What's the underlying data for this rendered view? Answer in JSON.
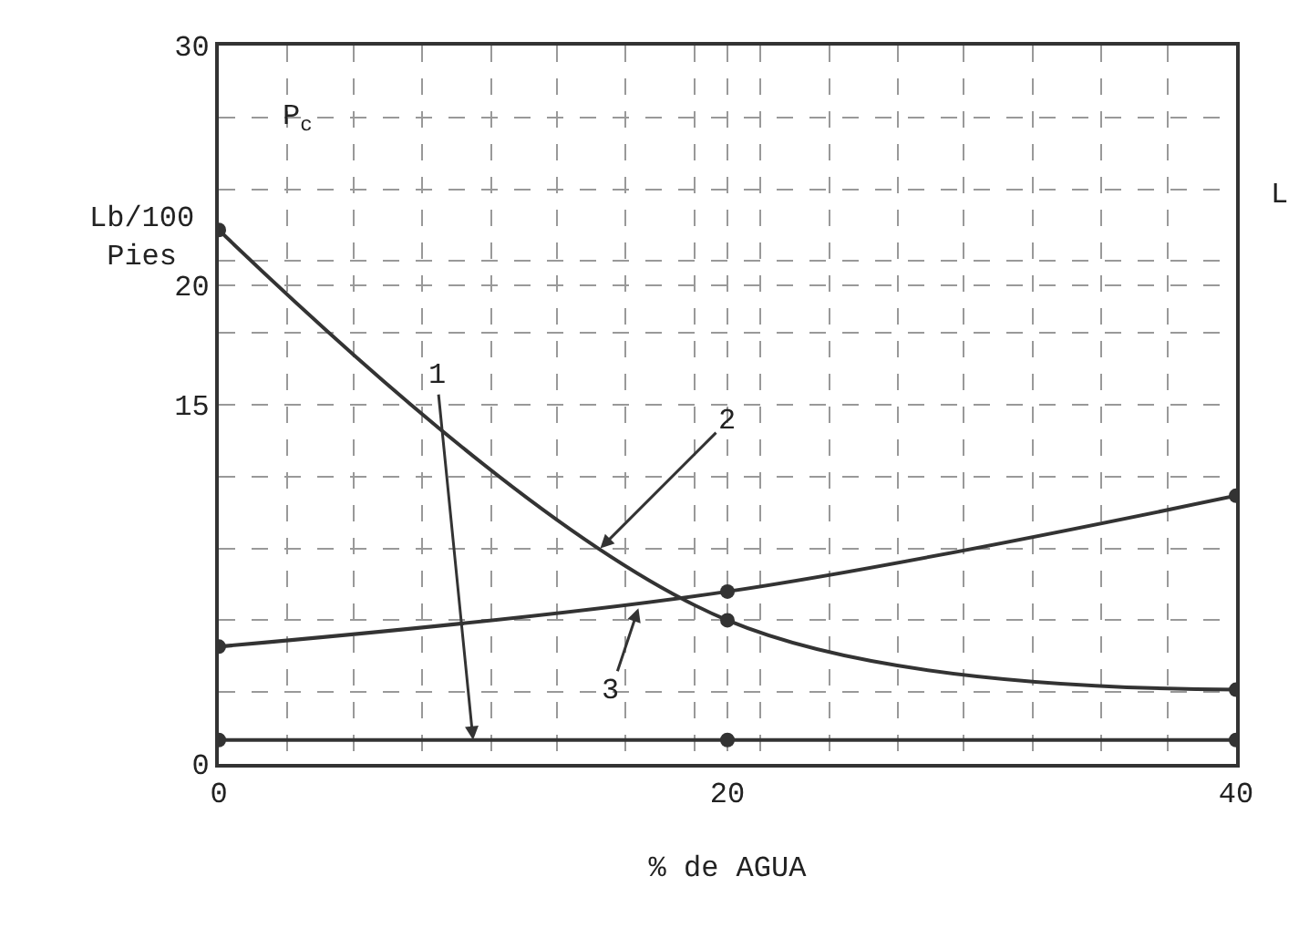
{
  "chart_data": {
    "type": "line",
    "xlabel": "% de AGUA",
    "ylabel": "Lb/100 Pies",
    "x": [
      0,
      20,
      40
    ],
    "series": [
      {
        "color": "#333333",
        "values": [
          1,
          1,
          1
        ]
      },
      {
        "color": "#333333",
        "values": [
          22.3,
          6,
          3.1
        ]
      },
      {
        "color": "#333333",
        "values": [
          4.9,
          7.2,
          11.2
        ]
      }
    ],
    "xlim": [
      0,
      40
    ],
    "ylim": [
      0,
      30
    ],
    "xticks": [
      0,
      {
        "value": 2.7,
        "label": null
      },
      {
        "value": 5.3,
        "label": null
      },
      {
        "value": 8,
        "label": null
      },
      {
        "value": 10.7,
        "label": null
      },
      {
        "value": 13.3,
        "label": null
      },
      {
        "value": 16,
        "label": null
      },
      {
        "value": 18.7,
        "label": null
      },
      20,
      {
        "value": 21.3,
        "label": null
      },
      {
        "value": 24,
        "label": null
      },
      {
        "value": 26.7,
        "label": null
      },
      {
        "value": 29.3,
        "label": null
      },
      {
        "value": 32,
        "label": null
      },
      {
        "value": 34.7,
        "label": null
      },
      {
        "value": 37.3,
        "label": null
      },
      40
    ],
    "yticks": [
      0,
      {
        "value": 3,
        "label": null
      },
      {
        "value": 6,
        "label": null
      },
      {
        "value": 9,
        "label": null
      },
      {
        "value": 12,
        "label": null
      },
      15,
      {
        "value": 18,
        "label": null
      },
      20,
      {
        "value": 21,
        "label": null
      },
      {
        "value": 24,
        "label": null
      },
      {
        "value": 27,
        "label": null
      },
      30
    ],
    "grid": true,
    "marker": "circle",
    "line_style": "solid",
    "annotations": [
      {
        "text": "1",
        "x": 10,
        "y": 1
      },
      {
        "text": "2",
        "x": 15,
        "y": 9.0
      },
      {
        "text": "3",
        "x": 16.5,
        "y": 6.5
      },
      "P$_{c}$",
      "L"
    ]
  }
}
